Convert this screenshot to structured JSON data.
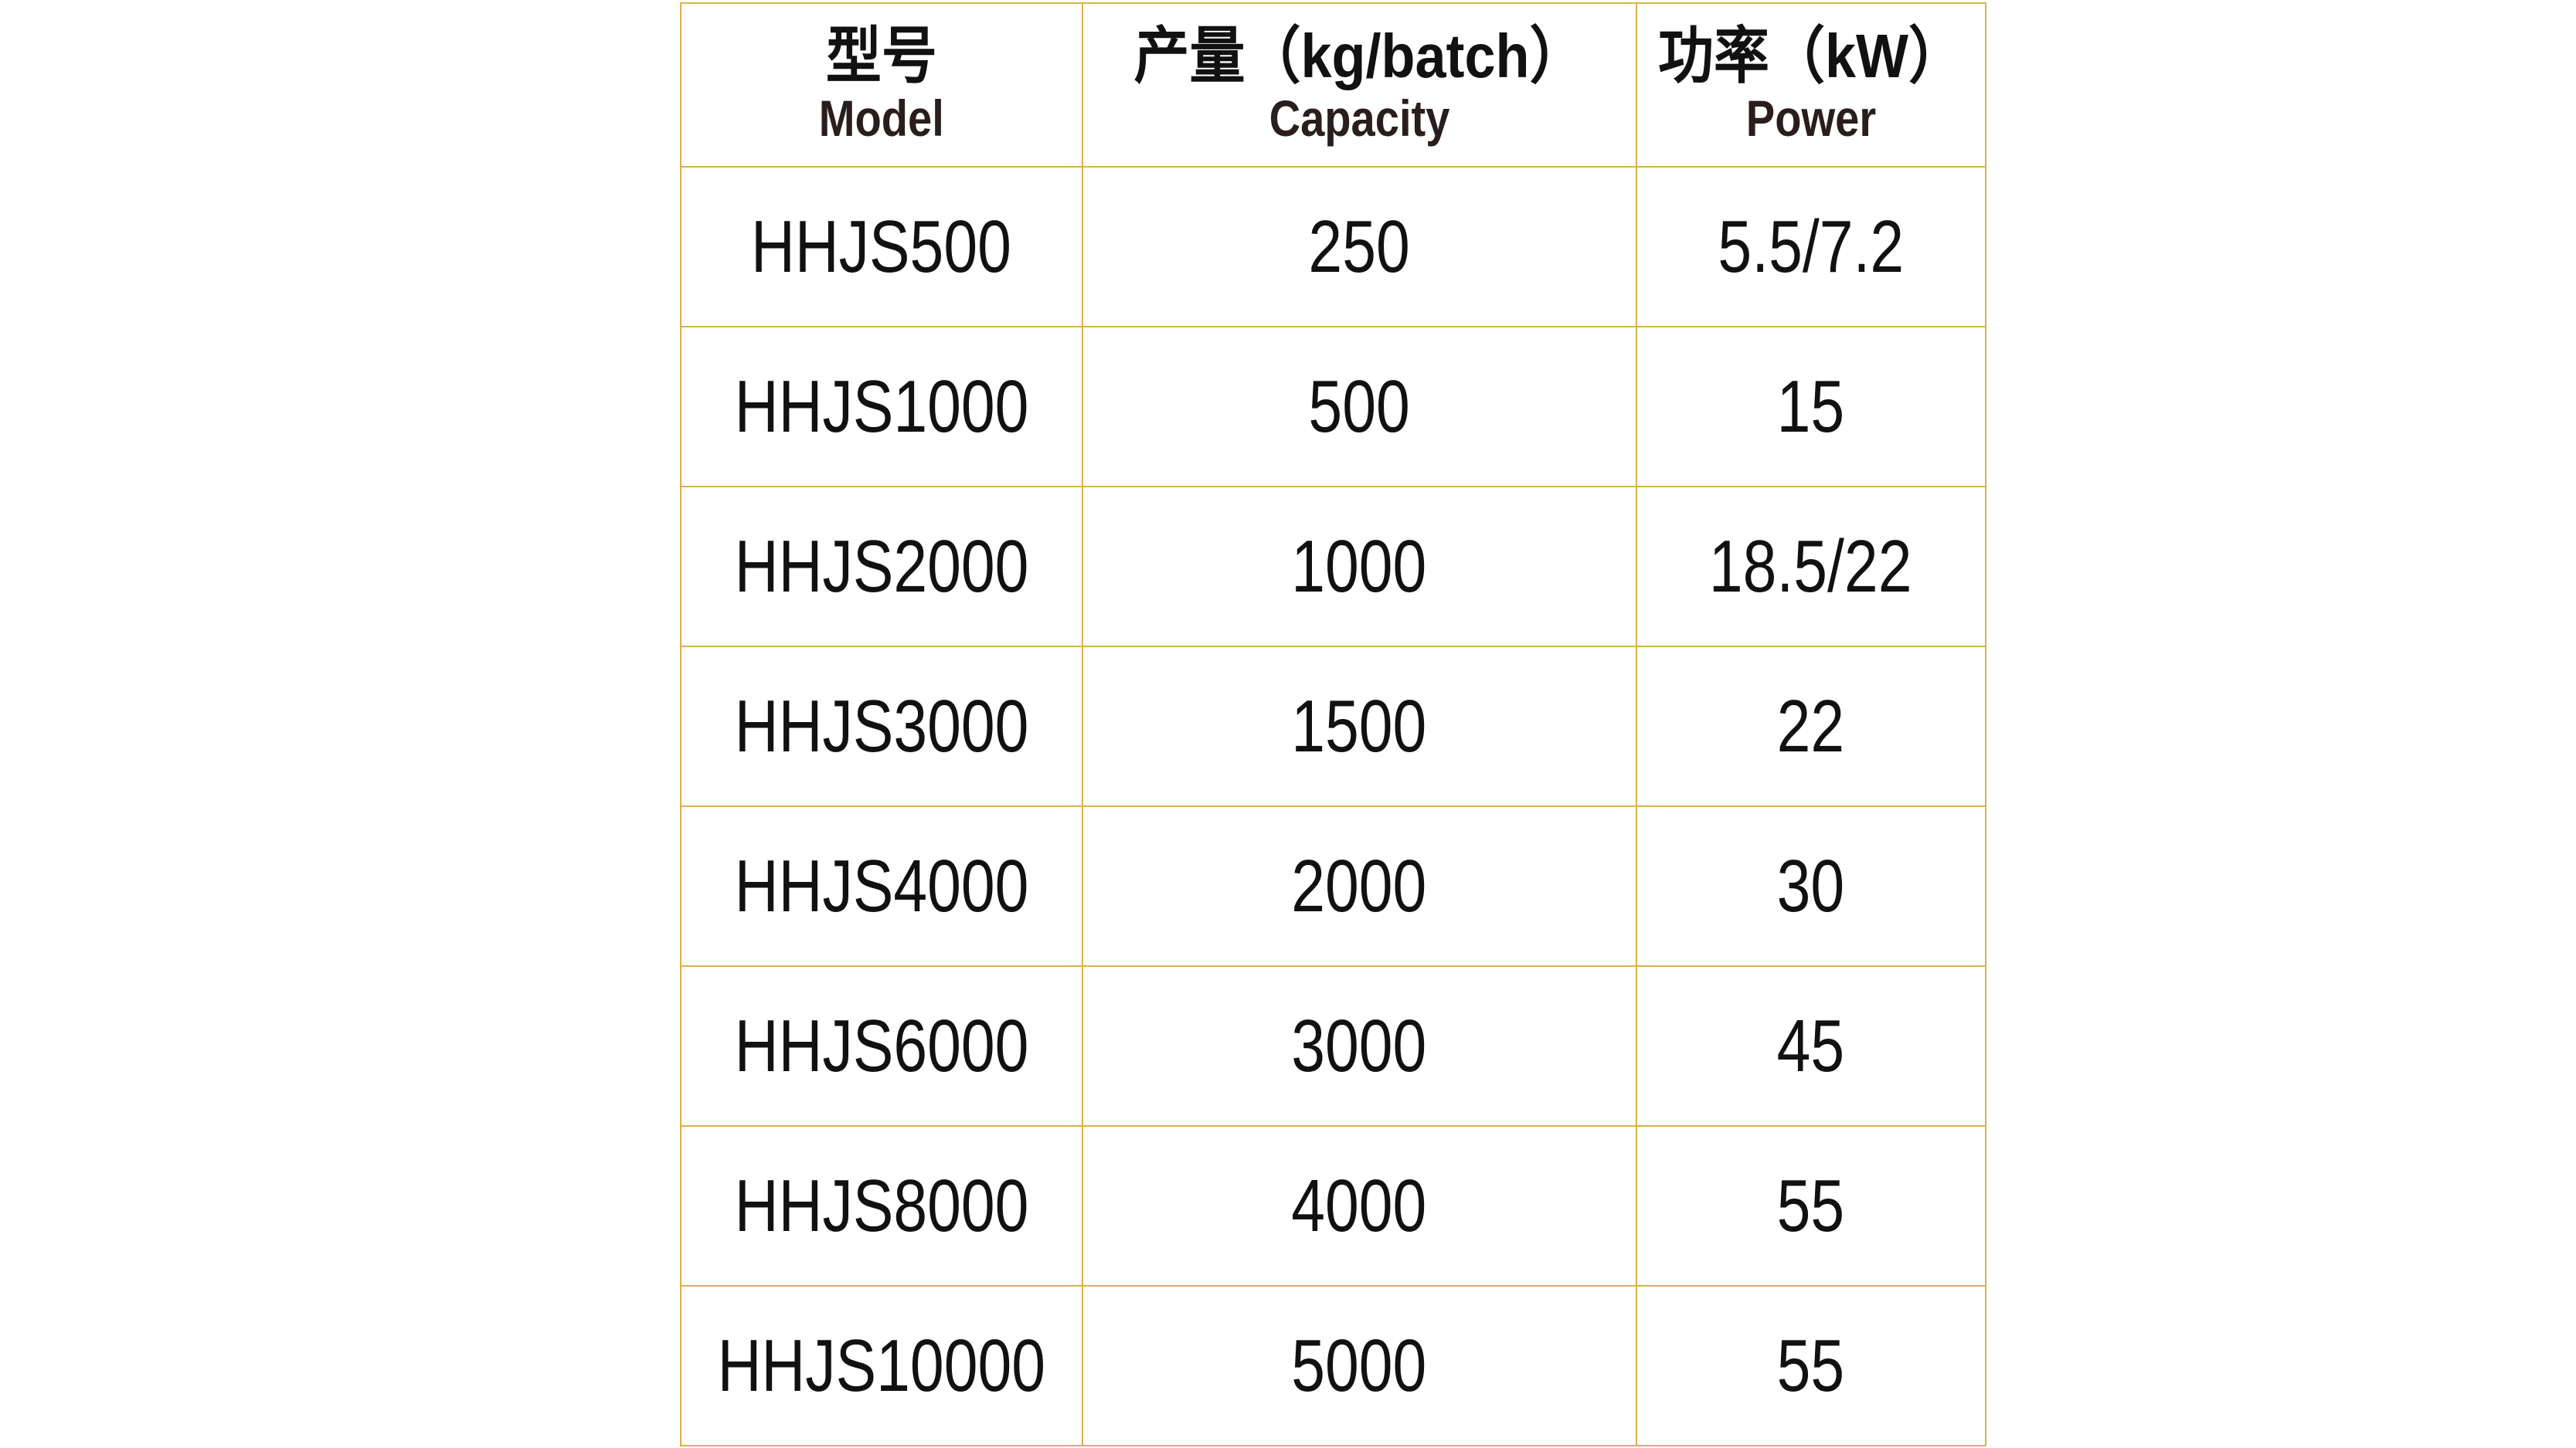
{
  "table": {
    "headers": [
      {
        "zh": "型号",
        "en": "Model"
      },
      {
        "zh": "产量（kg/batch）",
        "en": "Capacity"
      },
      {
        "zh": "功率（kW）",
        "en": "Power"
      }
    ],
    "rows": [
      [
        "HHJS500",
        "250",
        "5.5/7.2"
      ],
      [
        "HHJS1000",
        "500",
        "15"
      ],
      [
        "HHJS2000",
        "1000",
        "18.5/22"
      ],
      [
        "HHJS3000",
        "1500",
        "22"
      ],
      [
        "HHJS4000",
        "2000",
        "30"
      ],
      [
        "HHJS6000",
        "3000",
        "45"
      ],
      [
        "HHJS8000",
        "4000",
        "55"
      ],
      [
        "HHJS10000",
        "5000",
        "55"
      ]
    ],
    "border_color": "#d9b24a"
  }
}
